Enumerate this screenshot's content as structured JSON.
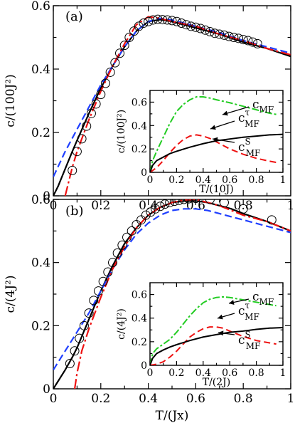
{
  "figure": {
    "xlabel": "T/(Jx)"
  },
  "chart_data": [
    {
      "type": "line",
      "panel_label": "(a)",
      "ylabel": "c/(100J²)",
      "xlim": [
        0,
        1
      ],
      "ylim": [
        0,
        0.6
      ],
      "xticks": [
        "0",
        "0.2",
        "0.4",
        "0.6",
        "0.8",
        "1"
      ],
      "yticks": [
        "0",
        "0.2",
        "0.4",
        "0.6"
      ],
      "series": [
        {
          "style": "solid-black",
          "color": "#000000",
          "x": [
            0.0,
            0.02,
            0.05,
            0.08,
            0.1,
            0.15,
            0.2,
            0.25,
            0.3,
            0.35,
            0.4,
            0.45,
            0.5,
            0.6,
            0.7,
            0.8,
            0.9,
            1.0
          ],
          "y": [
            0.0,
            0.03,
            0.085,
            0.14,
            0.175,
            0.26,
            0.34,
            0.41,
            0.47,
            0.52,
            0.55,
            0.556,
            0.55,
            0.53,
            0.51,
            0.485,
            0.465,
            0.44
          ]
        },
        {
          "style": "dashed-blue",
          "color": "#1f3fff",
          "x": [
            0.0,
            0.05,
            0.1,
            0.15,
            0.2,
            0.25,
            0.3,
            0.35,
            0.4,
            0.45,
            0.5,
            0.6,
            0.7,
            0.8,
            0.9,
            1.0
          ],
          "y": [
            0.06,
            0.14,
            0.21,
            0.28,
            0.35,
            0.41,
            0.47,
            0.52,
            0.55,
            0.56,
            0.555,
            0.535,
            0.515,
            0.49,
            0.47,
            0.45
          ]
        },
        {
          "style": "dash-dot-red",
          "color": "#ee1111",
          "x": [
            0.05,
            0.08,
            0.1,
            0.15,
            0.2,
            0.25,
            0.3,
            0.35,
            0.4,
            0.45,
            0.5,
            0.6,
            0.7,
            0.8,
            0.9,
            1.0
          ],
          "y": [
            0.0,
            0.09,
            0.14,
            0.24,
            0.33,
            0.41,
            0.48,
            0.54,
            0.565,
            0.56,
            0.55,
            0.535,
            0.51,
            0.49,
            0.465,
            0.445
          ]
        },
        {
          "style": "open-circles",
          "color": "#000000",
          "x": [
            0.08,
            0.1,
            0.12,
            0.14,
            0.16,
            0.18,
            0.2,
            0.22,
            0.24,
            0.26,
            0.28,
            0.3,
            0.32,
            0.34,
            0.36,
            0.38,
            0.4,
            0.42,
            0.44,
            0.46,
            0.48,
            0.5,
            0.52,
            0.54,
            0.56,
            0.58,
            0.6,
            0.62,
            0.64,
            0.66,
            0.68,
            0.7,
            0.72,
            0.74,
            0.76,
            0.78,
            0.8,
            0.82,
            0.84,
            0.86
          ],
          "y": [
            0.08,
            0.14,
            0.18,
            0.22,
            0.26,
            0.29,
            0.32,
            0.355,
            0.39,
            0.42,
            0.45,
            0.475,
            0.5,
            0.52,
            0.535,
            0.545,
            0.55,
            0.555,
            0.557,
            0.556,
            0.555,
            0.553,
            0.55,
            0.545,
            0.54,
            0.535,
            0.532,
            0.528,
            0.523,
            0.518,
            0.513,
            0.51,
            0.507,
            0.503,
            0.5,
            0.497,
            0.493,
            0.49,
            0.485,
            0.48
          ]
        }
      ],
      "inset": {
        "xlabel": "T/(10J)",
        "ylabel": "c/(100J²)",
        "xlim": [
          0,
          1
        ],
        "ylim": [
          0,
          0.7
        ],
        "xticks": [
          "0",
          "0.2",
          "0.4",
          "0.6",
          "0.8",
          "1"
        ],
        "yticks": [
          "0",
          "0.2",
          "0.4",
          "0.6"
        ],
        "annotations": [
          {
            "text": "c",
            "sub": "MF",
            "sup": "",
            "series": 0
          },
          {
            "text": "c",
            "sub": "MF",
            "sup": "τ",
            "series": 1
          },
          {
            "text": "c",
            "sub": "MF",
            "sup": "S",
            "series": 2
          }
        ],
        "series": [
          {
            "style": "dash-dot-green",
            "color": "#22cc22",
            "x": [
              0.0,
              0.02,
              0.05,
              0.1,
              0.15,
              0.2,
              0.25,
              0.3,
              0.35,
              0.4,
              0.45,
              0.5,
              0.6,
              0.7,
              0.8,
              0.9,
              0.95
            ],
            "y": [
              0.0,
              0.1,
              0.18,
              0.3,
              0.42,
              0.52,
              0.58,
              0.62,
              0.645,
              0.645,
              0.635,
              0.62,
              0.595,
              0.565,
              0.535,
              0.505,
              0.495
            ]
          },
          {
            "style": "dashed-red",
            "color": "#ee1111",
            "x": [
              0.0,
              0.05,
              0.1,
              0.15,
              0.2,
              0.25,
              0.3,
              0.35,
              0.4,
              0.45,
              0.5,
              0.6,
              0.7,
              0.8,
              0.9,
              0.95
            ],
            "y": [
              0.0,
              0.04,
              0.1,
              0.17,
              0.23,
              0.28,
              0.31,
              0.32,
              0.31,
              0.29,
              0.26,
              0.2,
              0.155,
              0.12,
              0.095,
              0.085
            ]
          },
          {
            "style": "solid-black",
            "color": "#000000",
            "x": [
              0.0,
              0.02,
              0.05,
              0.1,
              0.15,
              0.2,
              0.3,
              0.4,
              0.5,
              0.6,
              0.7,
              0.8,
              0.9,
              1.0
            ],
            "y": [
              0.0,
              0.06,
              0.1,
              0.13,
              0.16,
              0.18,
              0.215,
              0.245,
              0.27,
              0.285,
              0.3,
              0.31,
              0.32,
              0.325
            ]
          }
        ]
      }
    },
    {
      "type": "line",
      "panel_label": "(b)",
      "ylabel": "c/(4J²)",
      "xlim": [
        0,
        1
      ],
      "ylim": [
        0,
        0.6
      ],
      "xticks": [
        "0",
        "0.2",
        "0.4",
        "0.6",
        "0.8",
        "1"
      ],
      "yticks": [
        "0",
        "0.2",
        "0.4",
        "0.6"
      ],
      "series": [
        {
          "style": "solid-black",
          "color": "#000000",
          "x": [
            0.0,
            0.05,
            0.08,
            0.1,
            0.15,
            0.2,
            0.25,
            0.3,
            0.35,
            0.4,
            0.45,
            0.5,
            0.55,
            0.6,
            0.65,
            0.7,
            0.75,
            0.8,
            0.9,
            1.0
          ],
          "y": [
            0.0,
            0.06,
            0.1,
            0.13,
            0.22,
            0.31,
            0.39,
            0.46,
            0.51,
            0.55,
            0.575,
            0.59,
            0.595,
            0.595,
            0.59,
            0.58,
            0.57,
            0.555,
            0.53,
            0.5
          ]
        },
        {
          "style": "dashed-blue",
          "color": "#1f3fff",
          "x": [
            0.0,
            0.05,
            0.1,
            0.15,
            0.2,
            0.25,
            0.3,
            0.35,
            0.4,
            0.45,
            0.5,
            0.55,
            0.6,
            0.65,
            0.7,
            0.75,
            0.8,
            0.9,
            1.0
          ],
          "y": [
            0.06,
            0.12,
            0.18,
            0.24,
            0.31,
            0.38,
            0.44,
            0.49,
            0.525,
            0.55,
            0.565,
            0.57,
            0.57,
            0.565,
            0.555,
            0.545,
            0.535,
            0.515,
            0.495
          ]
        },
        {
          "style": "dash-dot-red",
          "color": "#ee1111",
          "x": [
            0.09,
            0.1,
            0.12,
            0.15,
            0.2,
            0.25,
            0.3,
            0.35,
            0.4,
            0.45,
            0.5,
            0.55,
            0.6,
            0.65,
            0.7,
            0.75,
            0.8,
            0.9,
            1.0
          ],
          "y": [
            0.0,
            0.05,
            0.12,
            0.19,
            0.29,
            0.38,
            0.45,
            0.51,
            0.55,
            0.575,
            0.59,
            0.598,
            0.6,
            0.59,
            0.58,
            0.565,
            0.55,
            0.53,
            0.5
          ]
        },
        {
          "style": "open-circles",
          "color": "#000000",
          "x": [
            0.07,
            0.09,
            0.11,
            0.13,
            0.15,
            0.17,
            0.19,
            0.21,
            0.23,
            0.25,
            0.27,
            0.29,
            0.31,
            0.33,
            0.35,
            0.37,
            0.39,
            0.41,
            0.43,
            0.45,
            0.47,
            0.49,
            0.51,
            0.53,
            0.55,
            0.57,
            0.6,
            0.66,
            0.72,
            0.8,
            0.92
          ],
          "y": [
            0.08,
            0.12,
            0.16,
            0.2,
            0.24,
            0.28,
            0.31,
            0.34,
            0.37,
            0.4,
            0.43,
            0.455,
            0.48,
            0.5,
            0.52,
            0.535,
            0.55,
            0.56,
            0.57,
            0.578,
            0.585,
            0.59,
            0.594,
            0.597,
            0.6,
            0.602,
            0.603,
            0.6,
            0.59,
            0.57,
            0.535
          ]
        }
      ],
      "inset": {
        "xlabel": "T/(2J)",
        "ylabel": "c/(4J²)",
        "xlim": [
          0,
          1
        ],
        "ylim": [
          0,
          0.7
        ],
        "xticks": [
          "0",
          "0.2",
          "0.4",
          "0.6",
          "0.8",
          "1"
        ],
        "yticks": [
          "0",
          "0.2",
          "0.4",
          "0.6"
        ],
        "annotations": [
          {
            "text": "c",
            "sub": "MF",
            "sup": "",
            "series": 0
          },
          {
            "text": "c",
            "sub": "MF",
            "sup": "τ",
            "series": 1
          },
          {
            "text": "c",
            "sub": "MF",
            "sup": "S",
            "series": 2
          }
        ],
        "series": [
          {
            "style": "dash-dot-green",
            "color": "#22cc22",
            "x": [
              0.0,
              0.02,
              0.05,
              0.1,
              0.15,
              0.2,
              0.25,
              0.3,
              0.35,
              0.4,
              0.45,
              0.5,
              0.55,
              0.6,
              0.7,
              0.8,
              0.9,
              0.95
            ],
            "y": [
              0.0,
              0.1,
              0.14,
              0.18,
              0.22,
              0.28,
              0.35,
              0.42,
              0.48,
              0.53,
              0.56,
              0.575,
              0.58,
              0.575,
              0.555,
              0.535,
              0.515,
              0.505
            ]
          },
          {
            "style": "dashed-red",
            "color": "#ee1111",
            "x": [
              0.0,
              0.05,
              0.1,
              0.15,
              0.2,
              0.25,
              0.3,
              0.35,
              0.4,
              0.45,
              0.5,
              0.55,
              0.6,
              0.7,
              0.8,
              0.9,
              0.95
            ],
            "y": [
              0.0,
              0.01,
              0.03,
              0.07,
              0.12,
              0.18,
              0.24,
              0.28,
              0.31,
              0.325,
              0.325,
              0.315,
              0.29,
              0.245,
              0.21,
              0.19,
              0.18
            ]
          },
          {
            "style": "solid-black",
            "color": "#000000",
            "x": [
              0.0,
              0.02,
              0.05,
              0.1,
              0.15,
              0.2,
              0.3,
              0.4,
              0.5,
              0.6,
              0.7,
              0.8,
              0.9,
              1.0
            ],
            "y": [
              0.0,
              0.06,
              0.1,
              0.13,
              0.155,
              0.175,
              0.21,
              0.24,
              0.26,
              0.28,
              0.29,
              0.305,
              0.315,
              0.32
            ]
          }
        ]
      }
    }
  ]
}
